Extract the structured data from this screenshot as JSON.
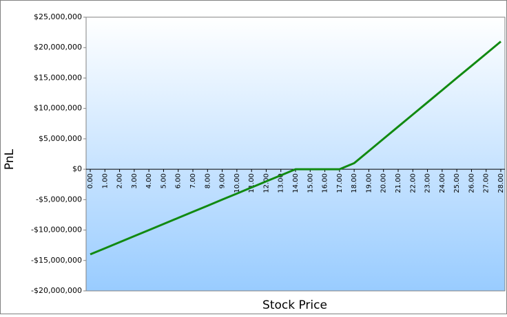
{
  "chart_data": {
    "type": "line",
    "x_axis_label": "Stock Price",
    "y_axis_label": "PnL",
    "categories": [
      "0.00",
      "1.00",
      "2.00",
      "3.00",
      "4.00",
      "5.00",
      "6.00",
      "7.00",
      "8.00",
      "9.00",
      "10.00",
      "11.00",
      "12.00",
      "13.00",
      "14.00",
      "15.00",
      "16.00",
      "17.00",
      "18.00",
      "19.00",
      "20.00",
      "21.00",
      "22.00",
      "23.00",
      "24.00",
      "25.00",
      "26.00",
      "27.00",
      "28.00"
    ],
    "series": [
      {
        "name": "PnL",
        "color": "#118a11",
        "values": [
          -14000000,
          -13000000,
          -12000000,
          -11000000,
          -10000000,
          -9000000,
          -8000000,
          -7000000,
          -6000000,
          -5000000,
          -4000000,
          -3000000,
          -2000000,
          -1000000,
          0,
          0,
          0,
          0,
          1000000,
          3000000,
          5000000,
          7000000,
          9000000,
          11000000,
          13000000,
          15000000,
          17000000,
          19000000,
          21000000
        ]
      }
    ],
    "ylim": [
      -20000000,
      25000000
    ],
    "yticks": [
      {
        "value": -20000000,
        "label": "-$20,000,000"
      },
      {
        "value": -15000000,
        "label": "-$15,000,000"
      },
      {
        "value": -10000000,
        "label": "-$10,000,000"
      },
      {
        "value": -5000000,
        "label": "-$5,000,000"
      },
      {
        "value": 0,
        "label": "$0"
      },
      {
        "value": 5000000,
        "label": "$5,000,000"
      },
      {
        "value": 10000000,
        "label": "$10,000,000"
      },
      {
        "value": 15000000,
        "label": "$15,000,000"
      },
      {
        "value": 20000000,
        "label": "$20,000,000"
      },
      {
        "value": 25000000,
        "label": "$25,000,000"
      }
    ]
  }
}
